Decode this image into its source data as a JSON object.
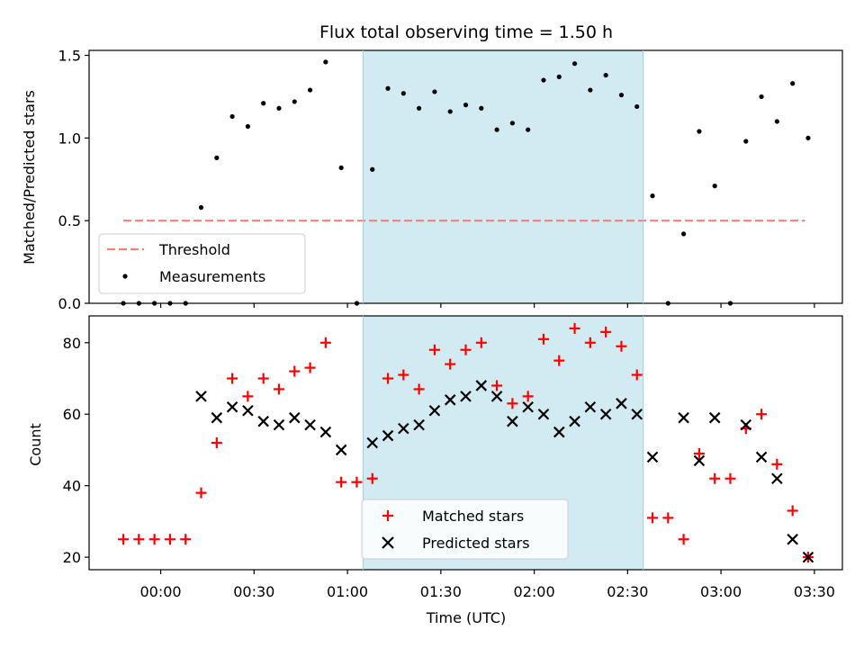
{
  "chart_data": {
    "type": "scatter",
    "title": "Flux total observing time = 1.50 h",
    "xlabel": "Time (UTC)",
    "x_tick_labels": [
      "00:00",
      "00:30",
      "01:00",
      "01:30",
      "02:00",
      "02:30",
      "03:00",
      "03:30"
    ],
    "x_tick_minutes": [
      0,
      30,
      60,
      90,
      120,
      150,
      180,
      210
    ],
    "xlim_minutes": [
      -23,
      219
    ],
    "highlight_span_minutes": [
      65,
      155
    ],
    "highlight_color": "#add8e6",
    "top": {
      "ylabel": "Matched/Predicted stars",
      "ylim": [
        0,
        1.53
      ],
      "y_ticks": [
        0.0,
        0.5,
        1.0,
        1.5
      ],
      "y_tick_labels": [
        "0.0",
        "0.5",
        "1.0",
        "1.5"
      ],
      "legend_placement": "lower-left",
      "threshold": {
        "name": "Threshold",
        "value": 0.5,
        "color": "#f08080",
        "x_range_minutes": [
          -12,
          207
        ]
      },
      "measurements": {
        "name": "Measurements",
        "color": "#000000",
        "t": [
          -12,
          -7,
          -2,
          3,
          8,
          13,
          18,
          23,
          28,
          33,
          38,
          43,
          48,
          53,
          58,
          63,
          68,
          73,
          78,
          83,
          88,
          93,
          98,
          103,
          108,
          113,
          118,
          123,
          128,
          133,
          138,
          143,
          148,
          153,
          158,
          163,
          168,
          173,
          178,
          183,
          188,
          193,
          198,
          203,
          208
        ],
        "y": [
          0,
          0,
          0,
          0,
          0,
          0.58,
          0.88,
          1.13,
          1.07,
          1.21,
          1.18,
          1.22,
          1.29,
          1.46,
          0.82,
          0,
          0.81,
          1.3,
          1.27,
          1.18,
          1.28,
          1.16,
          1.2,
          1.18,
          1.05,
          1.09,
          1.05,
          1.35,
          1.37,
          1.45,
          1.29,
          1.38,
          1.26,
          1.19,
          0.65,
          0,
          0.42,
          1.04,
          0.71,
          0,
          0.98,
          1.25,
          1.1,
          1.33,
          1.0
        ]
      }
    },
    "bottom": {
      "ylabel": "Count",
      "ylim": [
        16.5,
        87.5
      ],
      "y_ticks": [
        20,
        40,
        60,
        80
      ],
      "y_tick_labels": [
        "20",
        "40",
        "60",
        "80"
      ],
      "legend_placement": "lower-center",
      "matched": {
        "name": "Matched stars",
        "color": "#ff0000",
        "t": [
          -12,
          -7,
          -2,
          3,
          8,
          13,
          18,
          23,
          28,
          33,
          38,
          43,
          48,
          53,
          58,
          63,
          68,
          73,
          78,
          83,
          88,
          93,
          98,
          103,
          108,
          113,
          118,
          123,
          128,
          133,
          138,
          143,
          148,
          153,
          158,
          163,
          168,
          173,
          178,
          183,
          188,
          193,
          198,
          203,
          208
        ],
        "y": [
          25,
          25,
          25,
          25,
          25,
          38,
          52,
          70,
          65,
          70,
          67,
          72,
          73,
          80,
          41,
          41,
          42,
          70,
          71,
          67,
          78,
          74,
          78,
          80,
          68,
          63,
          65,
          81,
          75,
          84,
          80,
          83,
          79,
          71,
          31,
          31,
          25,
          49,
          42,
          42,
          56,
          60,
          46,
          33,
          20
        ]
      },
      "predicted": {
        "name": "Predicted stars",
        "color": "#000000",
        "t": [
          13,
          18,
          23,
          28,
          33,
          38,
          43,
          48,
          53,
          58,
          68,
          73,
          78,
          83,
          88,
          93,
          98,
          103,
          108,
          113,
          118,
          123,
          128,
          133,
          138,
          143,
          148,
          153,
          158,
          168,
          173,
          178,
          188,
          193,
          198,
          203,
          208
        ],
        "y": [
          65,
          59,
          62,
          61,
          58,
          57,
          59,
          57,
          55,
          50,
          52,
          54,
          56,
          57,
          61,
          64,
          65,
          68,
          65,
          58,
          62,
          60,
          55,
          58,
          62,
          60,
          63,
          60,
          48,
          59,
          47,
          59,
          57,
          48,
          42,
          25,
          20
        ]
      }
    }
  }
}
